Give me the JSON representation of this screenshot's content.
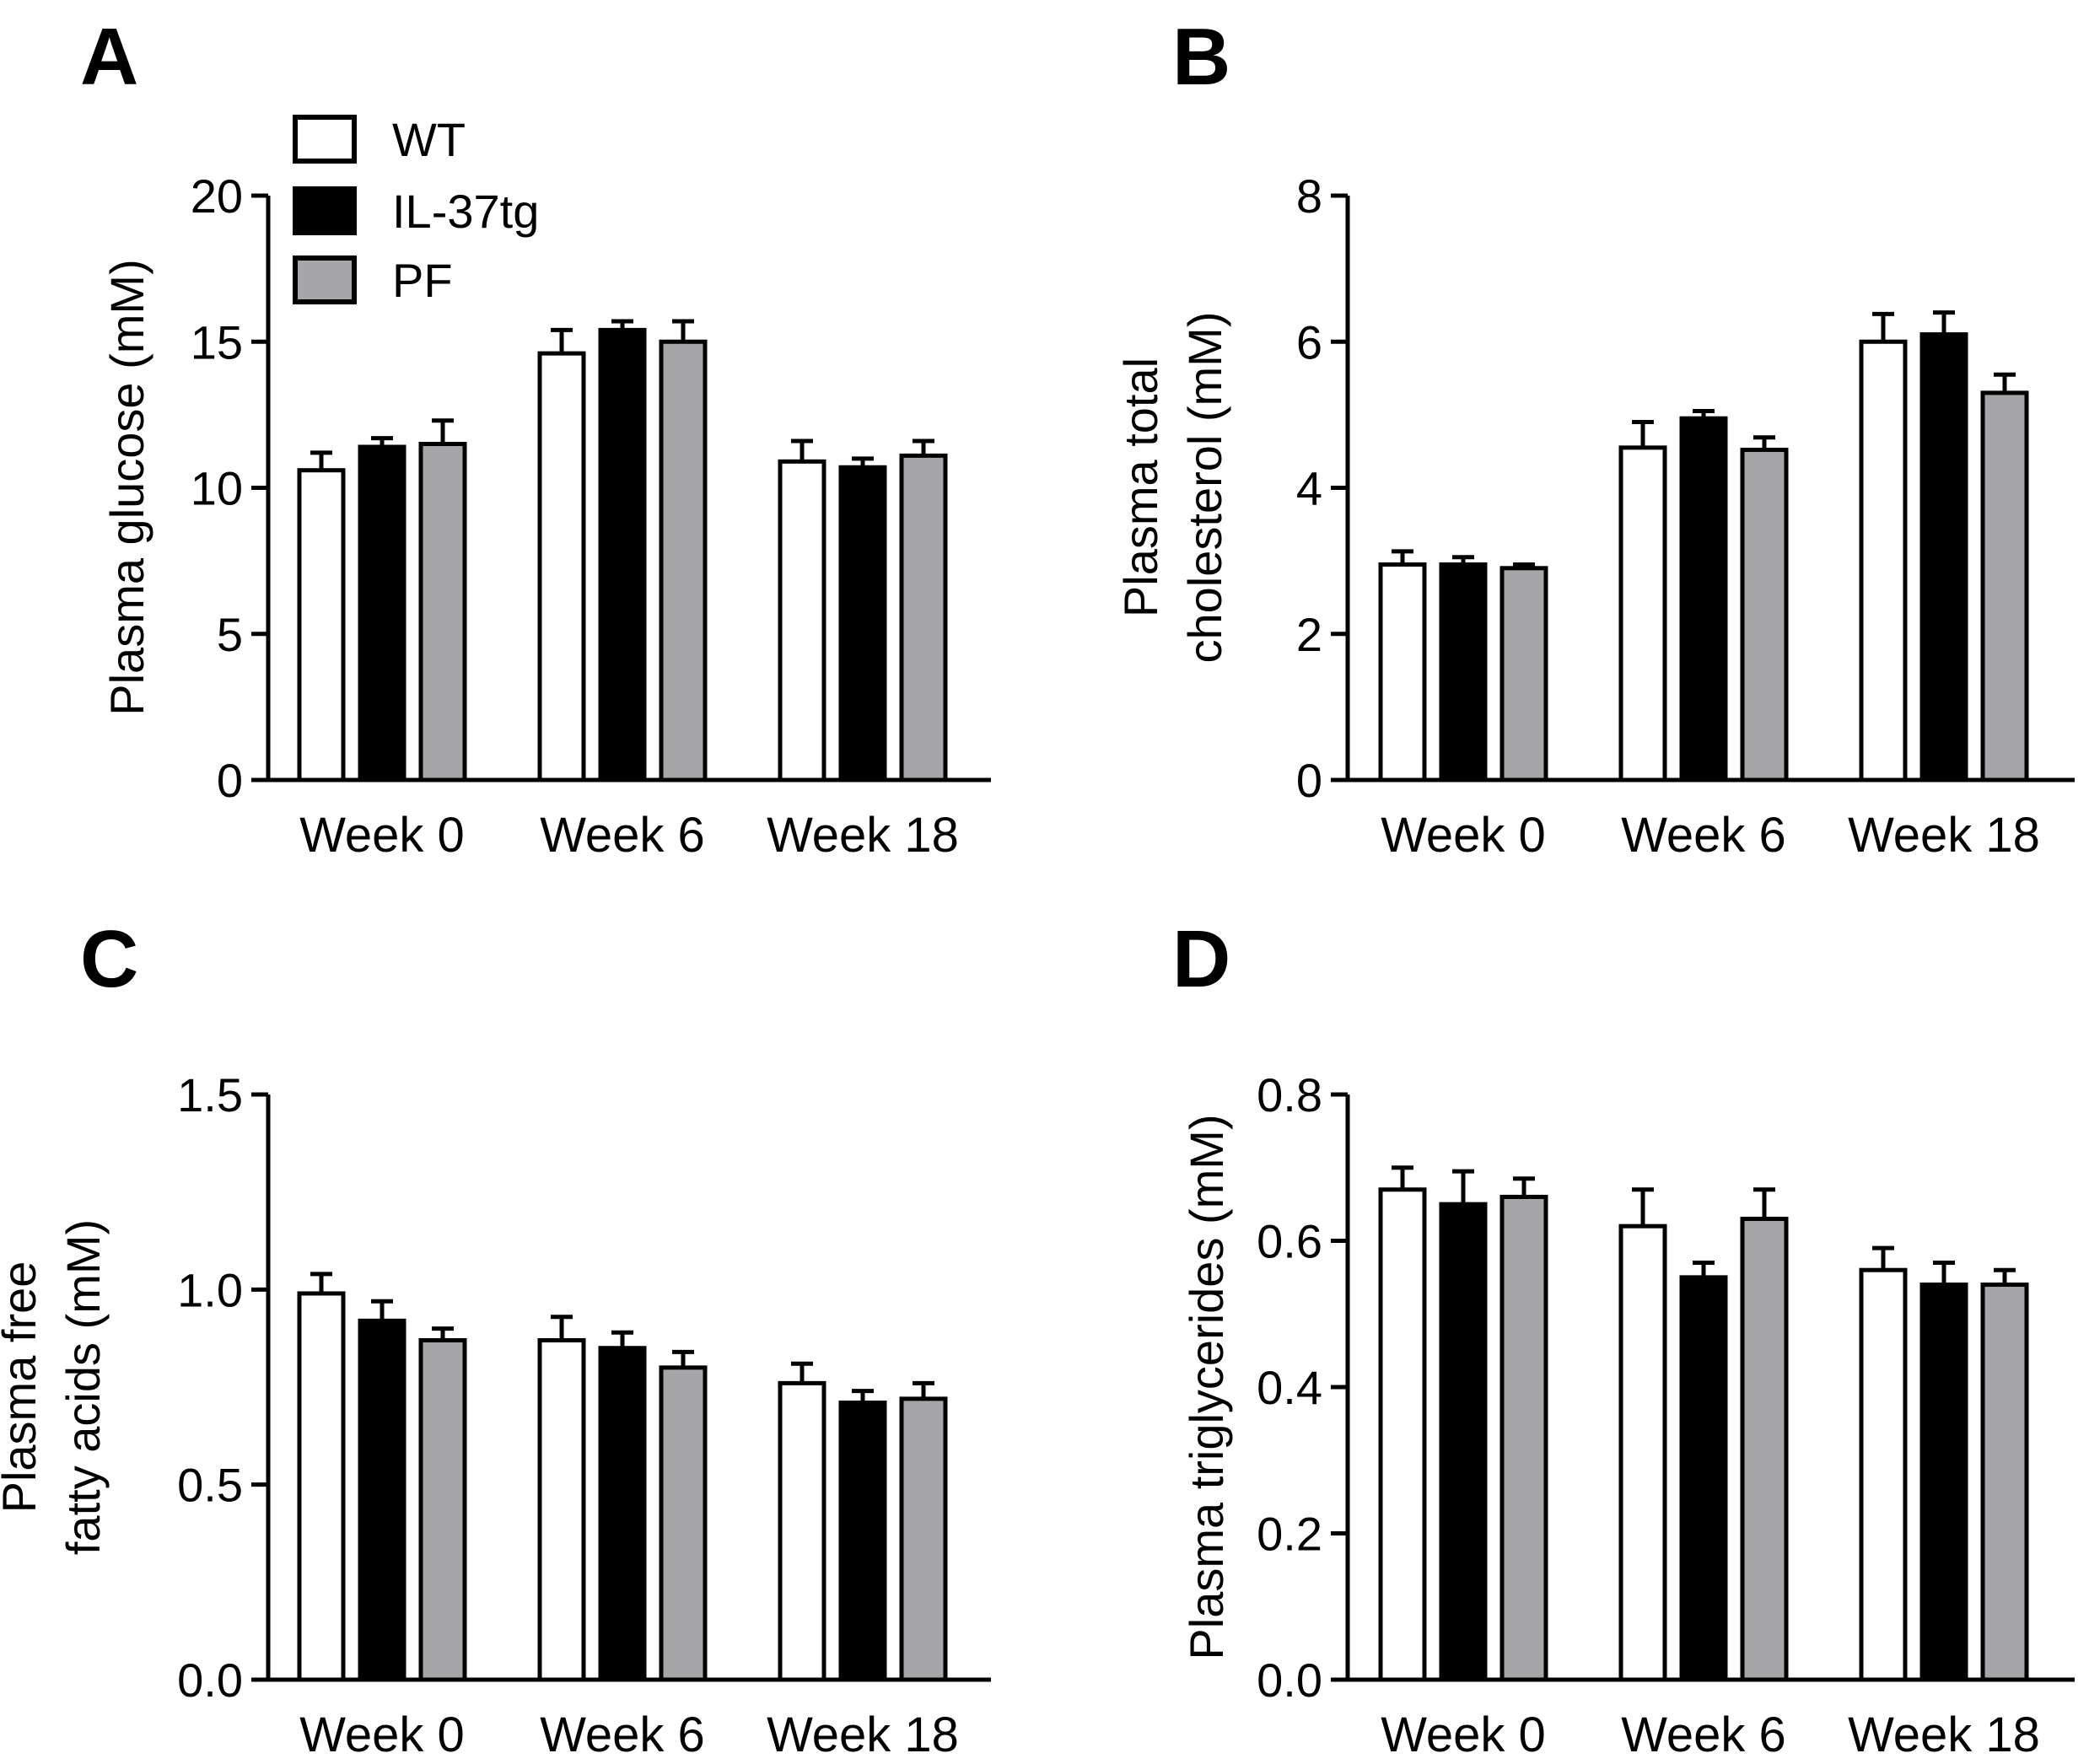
{
  "legend": [
    {
      "name": "WT",
      "color": "#ffffff"
    },
    {
      "name": "IL-37tg",
      "color": "#000000"
    },
    {
      "name": "PF",
      "color": "#a6a6a8"
    }
  ],
  "chart_data": [
    {
      "type": "bar",
      "panel": "A",
      "categories": [
        "Week 0",
        "Week 6",
        "Week 18"
      ],
      "ylabel_lines": [
        "Plasma glucose (mM)"
      ],
      "ylim": [
        0,
        20
      ],
      "yticks": [
        "0",
        "5",
        "10",
        "15",
        "20"
      ],
      "ytick_values": [
        0,
        5,
        10,
        15,
        20
      ],
      "series": [
        {
          "name": "WT",
          "values": [
            10.6,
            14.6,
            10.9
          ],
          "errors": [
            0.6,
            0.8,
            0.7
          ]
        },
        {
          "name": "IL-37tg",
          "values": [
            11.4,
            15.4,
            10.7
          ],
          "errors": [
            0.3,
            0.3,
            0.3
          ]
        },
        {
          "name": "PF",
          "values": [
            11.5,
            15.0,
            11.1
          ],
          "errors": [
            0.8,
            0.7,
            0.5
          ]
        }
      ]
    },
    {
      "type": "bar",
      "panel": "B",
      "categories": [
        "Week 0",
        "Week 6",
        "Week 18"
      ],
      "ylabel_lines": [
        "Plasma total",
        "cholesterol (mM)"
      ],
      "ylim": [
        0,
        8
      ],
      "yticks": [
        "0",
        "2",
        "4",
        "6",
        "8"
      ],
      "ytick_values": [
        0,
        2,
        4,
        6,
        8
      ],
      "series": [
        {
          "name": "WT",
          "values": [
            2.95,
            4.55,
            6.0
          ],
          "errors": [
            0.18,
            0.35,
            0.38
          ]
        },
        {
          "name": "IL-37tg",
          "values": [
            2.95,
            4.95,
            6.1
          ],
          "errors": [
            0.1,
            0.1,
            0.3
          ]
        },
        {
          "name": "PF",
          "values": [
            2.9,
            4.52,
            5.3
          ],
          "errors": [
            0.05,
            0.17,
            0.25
          ]
        }
      ]
    },
    {
      "type": "bar",
      "panel": "C",
      "categories": [
        "Week 0",
        "Week 6",
        "Week 18"
      ],
      "ylabel_lines": [
        "Plasma free",
        "fatty acids (mM)"
      ],
      "ylim": [
        0,
        1.5
      ],
      "yticks": [
        "0.0",
        "0.5",
        "1.0",
        "1.5"
      ],
      "ytick_values": [
        0,
        0.5,
        1.0,
        1.5
      ],
      "series": [
        {
          "name": "WT",
          "values": [
            0.99,
            0.87,
            0.76
          ],
          "errors": [
            0.05,
            0.06,
            0.05
          ]
        },
        {
          "name": "IL-37tg",
          "values": [
            0.92,
            0.85,
            0.71
          ],
          "errors": [
            0.05,
            0.04,
            0.03
          ]
        },
        {
          "name": "PF",
          "values": [
            0.87,
            0.8,
            0.72
          ],
          "errors": [
            0.03,
            0.04,
            0.04
          ]
        }
      ]
    },
    {
      "type": "bar",
      "panel": "D",
      "categories": [
        "Week 0",
        "Week 6",
        "Week 18"
      ],
      "ylabel_lines": [
        "Plasma triglycerides (mM)"
      ],
      "ylim": [
        0,
        0.8
      ],
      "yticks": [
        "0.0",
        "0.2",
        "0.4",
        "0.6",
        "0.8"
      ],
      "ytick_values": [
        0,
        0.2,
        0.4,
        0.6,
        0.8
      ],
      "series": [
        {
          "name": "WT",
          "values": [
            0.67,
            0.62,
            0.56
          ],
          "errors": [
            0.03,
            0.05,
            0.03
          ]
        },
        {
          "name": "IL-37tg",
          "values": [
            0.65,
            0.55,
            0.54
          ],
          "errors": [
            0.045,
            0.02,
            0.03
          ]
        },
        {
          "name": "PF",
          "values": [
            0.66,
            0.63,
            0.54
          ],
          "errors": [
            0.025,
            0.04,
            0.02
          ]
        }
      ]
    }
  ]
}
